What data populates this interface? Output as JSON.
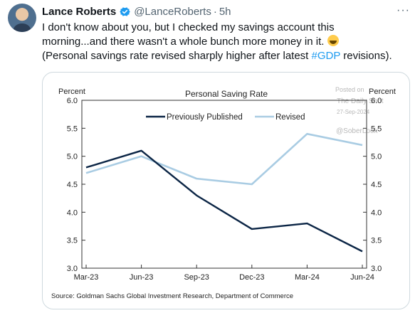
{
  "tweet": {
    "author_name": "Lance Roberts",
    "handle": "@LanceRoberts",
    "separator": "·",
    "time": "5h",
    "more_label": "···",
    "text_line1": "I don't know about you, but I checked my savings account this",
    "text_line2": "morning...and there wasn't a whole bunch more money in it.",
    "text_line3_before": "(Personal savings rate revised sharply higher after latest ",
    "hashtag": "#GDP",
    "text_line3_after": " revisions).",
    "emoji": "rolling-on-floor-laughing-emoji"
  },
  "watermark": {
    "line1": "Posted on",
    "line2": "The Daily Shot",
    "line3": "27-Sep-2024",
    "line4": "@SoberLook"
  },
  "chart_data": {
    "type": "line",
    "title": "Personal Saving Rate",
    "ylabel_left": "Percent",
    "ylabel_right": "Percent",
    "categories": [
      "Mar-23",
      "Jun-23",
      "Sep-23",
      "Dec-23",
      "Mar-24",
      "Jun-24"
    ],
    "yticks": [
      "6.0",
      "5.5",
      "5.0",
      "4.5",
      "4.0",
      "3.5",
      "3.0"
    ],
    "ylim": [
      3.0,
      6.0
    ],
    "grid": false,
    "legend_position": "top",
    "series": [
      {
        "name": "Previously Published",
        "color": "#0b2545",
        "values": [
          4.8,
          5.1,
          4.3,
          3.7,
          3.8,
          3.3
        ]
      },
      {
        "name": "Revised",
        "color": "#a9cce3",
        "values": [
          4.7,
          5.0,
          4.6,
          4.5,
          5.4,
          5.2
        ]
      }
    ],
    "source": "Source: Goldman Sachs Global Investment Research, Department of Commerce"
  }
}
